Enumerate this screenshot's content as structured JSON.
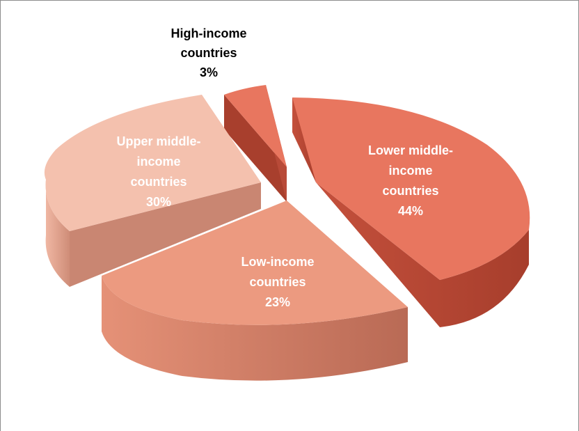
{
  "chart_data": {
    "type": "pie",
    "style": "3d-exploded",
    "title": "",
    "legend": "none",
    "slices": [
      {
        "name": "Lower middle-income countries",
        "label_lines": [
          "Lower middle-",
          "income",
          "countries"
        ],
        "percent_label": "44%",
        "value": 44,
        "color": "#e8765f",
        "side_color": "#b84a38",
        "label_color": "#ffffff"
      },
      {
        "name": "Low-income countries",
        "label_lines": [
          "Low-income",
          "countries"
        ],
        "percent_label": "23%",
        "value": 23,
        "color": "#ec9a80",
        "side_color": "#c9735d",
        "label_color": "#ffffff"
      },
      {
        "name": "Upper middle-income countries",
        "label_lines": [
          "Upper middle-",
          "income",
          "countries"
        ],
        "percent_label": "30%",
        "value": 30,
        "color": "#f4c1ae",
        "side_color": "#d99682",
        "label_color": "#ffffff"
      },
      {
        "name": "High-income countries",
        "label_lines": [
          "High-income",
          "countries"
        ],
        "percent_label": "3%",
        "value": 3,
        "color": "#e8765f",
        "side_color": "#a83f2d",
        "label_color": "#000000"
      }
    ]
  }
}
